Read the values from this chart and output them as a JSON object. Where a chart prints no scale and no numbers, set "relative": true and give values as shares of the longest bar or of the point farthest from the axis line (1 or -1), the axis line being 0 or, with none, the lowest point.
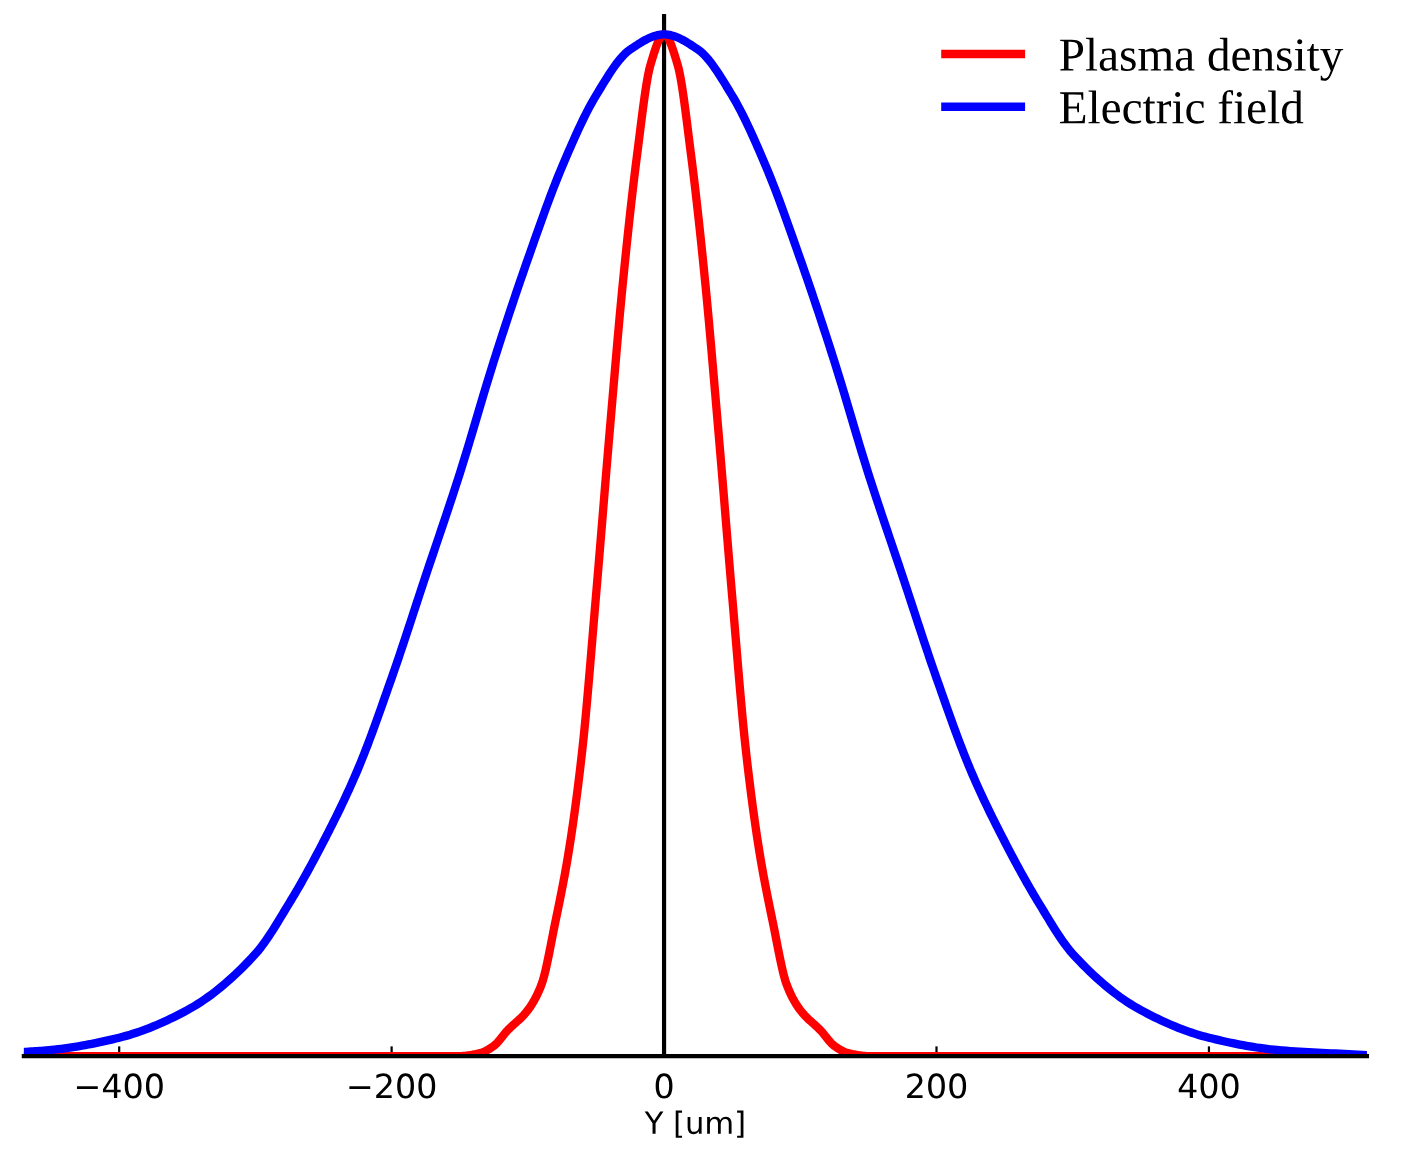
{
  "chart_data": {
    "type": "line",
    "xlabel": "Y [um]",
    "relative": true,
    "xlim": [
      -470,
      516
    ],
    "xticks": [
      {
        "value": -400,
        "label": "−400"
      },
      {
        "value": -200,
        "label": "−200"
      },
      0,
      200,
      400
    ],
    "legend": "top right",
    "ref_lines": [
      {
        "axis": "x",
        "value": 0,
        "color": "#000000",
        "line_style": "solid"
      }
    ],
    "grid": false,
    "line_style": "solid",
    "marker": "none",
    "series": [
      {
        "name": "Plasma density",
        "color": "#ff0000",
        "x": [
          -470,
          -150,
          -135,
          -125,
          -115,
          -100,
          -90,
          -80,
          -70,
          -60,
          -50,
          -40,
          -30,
          -20,
          -10,
          0,
          10,
          20,
          30,
          40,
          50,
          60,
          70,
          80,
          90,
          100,
          115,
          125,
          135,
          150,
          516
        ],
        "values": [
          0,
          0,
          0.003,
          0.01,
          0.025,
          0.045,
          0.07,
          0.13,
          0.2,
          0.3,
          0.45,
          0.61,
          0.76,
          0.88,
          0.97,
          1,
          0.97,
          0.88,
          0.76,
          0.61,
          0.45,
          0.3,
          0.2,
          0.13,
          0.07,
          0.045,
          0.025,
          0.01,
          0.003,
          0,
          0
        ]
      },
      {
        "name": "Electric field",
        "color": "#0000ff",
        "x": [
          -470,
          -450,
          -400,
          -350,
          -300,
          -275,
          -250,
          -225,
          -200,
          -175,
          -150,
          -125,
          -100,
          -75,
          -50,
          -25,
          0,
          25,
          50,
          75,
          100,
          125,
          150,
          175,
          200,
          225,
          250,
          275,
          300,
          350,
          400,
          450,
          516
        ],
        "values": [
          0.004,
          0.006,
          0.018,
          0.045,
          0.1,
          0.15,
          0.21,
          0.28,
          0.37,
          0.47,
          0.57,
          0.68,
          0.78,
          0.87,
          0.94,
          0.985,
          1,
          0.985,
          0.94,
          0.87,
          0.78,
          0.68,
          0.57,
          0.47,
          0.37,
          0.28,
          0.21,
          0.15,
          0.1,
          0.045,
          0.018,
          0.006,
          0.001
        ]
      }
    ]
  }
}
